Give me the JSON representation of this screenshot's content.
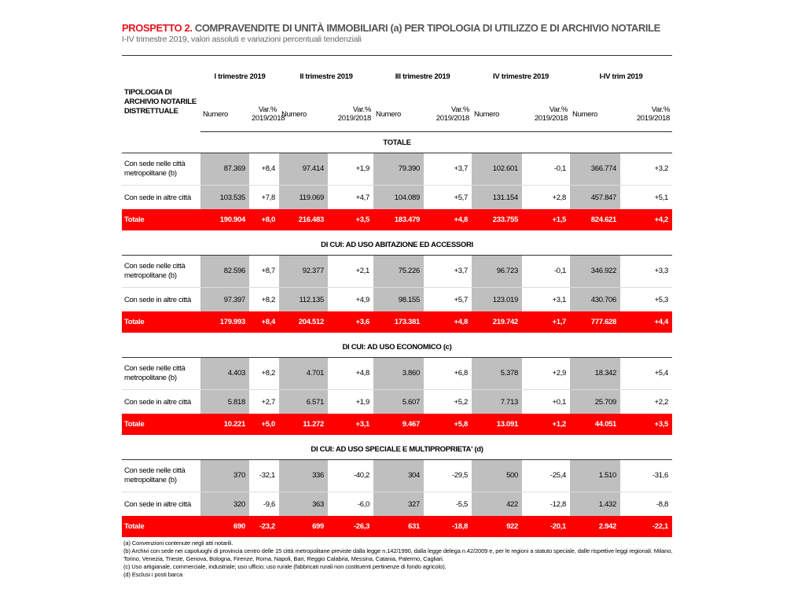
{
  "header": {
    "title_prefix": "PROSPETTO 2.",
    "title": "COMPRAVENDITE DI UNITÀ IMMOBILIARI (a) PER TIPOLOGIA DI UTILIZZO E DI ARCHIVIO NOTARILE",
    "subtitle": "I-IV trimestre 2019, valori assoluti e variazioni percentuali tendenziali"
  },
  "table": {
    "corner": "TIPOLOGIA DI ARCHIVIO NOTARILE DISTRETTUALE",
    "periods": [
      "I trimestre 2019",
      "II trimestre 2019",
      "III trimestre 2019",
      "IV trimestre 2019",
      "I-IV trim 2019"
    ],
    "subheaders": [
      "Numero",
      "Var.% 2019/2018"
    ],
    "sections": [
      {
        "title": "TOTALE",
        "rows": [
          {
            "label": "Con sede  nelle città metropolitane (b)",
            "values": [
              "87.369",
              "+8,4",
              "97.414",
              "+1,9",
              "79.390",
              "+3,7",
              "102.601",
              "-0,1",
              "366.774",
              "+3,2"
            ]
          },
          {
            "label": "Con sede in altre città",
            "values": [
              "103.535",
              "+7,8",
              "119.069",
              "+4,7",
              "104.089",
              "+5,7",
              "131.154",
              "+2,8",
              "457.847",
              "+5,1"
            ]
          },
          {
            "label": "Totale",
            "values": [
              "190.904",
              "+8,0",
              "216.483",
              "+3,5",
              "183.479",
              "+4,8",
              "233.755",
              "+1,5",
              "824.621",
              "+4,2"
            ]
          }
        ]
      },
      {
        "title": "DI CUI: AD USO ABITAZIONE ED ACCESSORI",
        "rows": [
          {
            "label": "Con sede nelle città metropolitane (b)",
            "values": [
              "82.596",
              "+8,7",
              "92.377",
              "+2,1",
              "75.226",
              "+3,7",
              "96.723",
              "-0,1",
              "346.922",
              "+3,3"
            ]
          },
          {
            "label": "Con sede in altre città",
            "values": [
              "97.397",
              "+8,2",
              "112.135",
              "+4,9",
              "98.155",
              "+5,7",
              "123.019",
              "+3,1",
              "430.706",
              "+5,3"
            ]
          },
          {
            "label": "Totale",
            "values": [
              "179.993",
              "+8,4",
              "204.512",
              "+3,6",
              "173.381",
              "+4,8",
              "219.742",
              "+1,7",
              "777.628",
              "+4,4"
            ]
          }
        ]
      },
      {
        "title": "DI CUI: AD USO ECONOMICO (c)",
        "rows": [
          {
            "label": "Con sede nelle città metropolitane (b)",
            "values": [
              "4.403",
              "+8,2",
              "4.701",
              "+4,8",
              "3.860",
              "+6,8",
              "5.378",
              "+2,9",
              "18.342",
              "+5,4"
            ]
          },
          {
            "label": "Con sede in altre città",
            "values": [
              "5.818",
              "+2,7",
              "6.571",
              "+1,9",
              "5.607",
              "+5,2",
              "7.713",
              "+0,1",
              "25.709",
              "+2,2"
            ]
          },
          {
            "label": "Totale",
            "values": [
              "10.221",
              "+5,0",
              "11.272",
              "+3,1",
              "9.467",
              "+5,8",
              "13.091",
              "+1,2",
              "44.051",
              "+3,5"
            ]
          }
        ]
      },
      {
        "title": "DI CUI: AD USO SPECIALE E MULTIPROPRIETA' (d)",
        "rows": [
          {
            "label": "Con sede nelle città metropolitane (b)",
            "values": [
              "370",
              "-32,1",
              "336",
              "-40,2",
              "304",
              "-29,5",
              "500",
              "-25,4",
              "1.510",
              "-31,6"
            ]
          },
          {
            "label": "Con sede in altre città",
            "values": [
              "320",
              "-9,6",
              "363",
              "-6,0",
              "327",
              "-5,5",
              "422",
              "-12,8",
              "1.432",
              "-8,8"
            ]
          },
          {
            "label": "Totale",
            "values": [
              "690",
              "-23,2",
              "699",
              "-26,3",
              "631",
              "-18,8",
              "922",
              "-20,1",
              "2.942",
              "-22,1"
            ]
          }
        ]
      }
    ]
  },
  "footnotes": [
    "(a) Convenzioni contenute negli atti notarili.",
    "(b) Archivi con sede nei capoluoghi di provincia centro delle 15 città metropolitane previste dalla legge n.142/1990, dalla legge delega n.42/2009 e, per le regioni a statuto speciale, dalle rispettive leggi regionali: Milano, Torino, Venezia, Trieste, Genova, Bologna, Firenze, Roma, Napoli, Bari, Reggio Calabria, Messina, Catania, Palermo, Cagliari.",
    "(c) Uso artigianale, commerciale, industriale; uso ufficio; uso rurale (fabbricati rurali non costituenti pertinenze di fondo agricolo).",
    "(d) Esclusi i posti barca"
  ]
}
